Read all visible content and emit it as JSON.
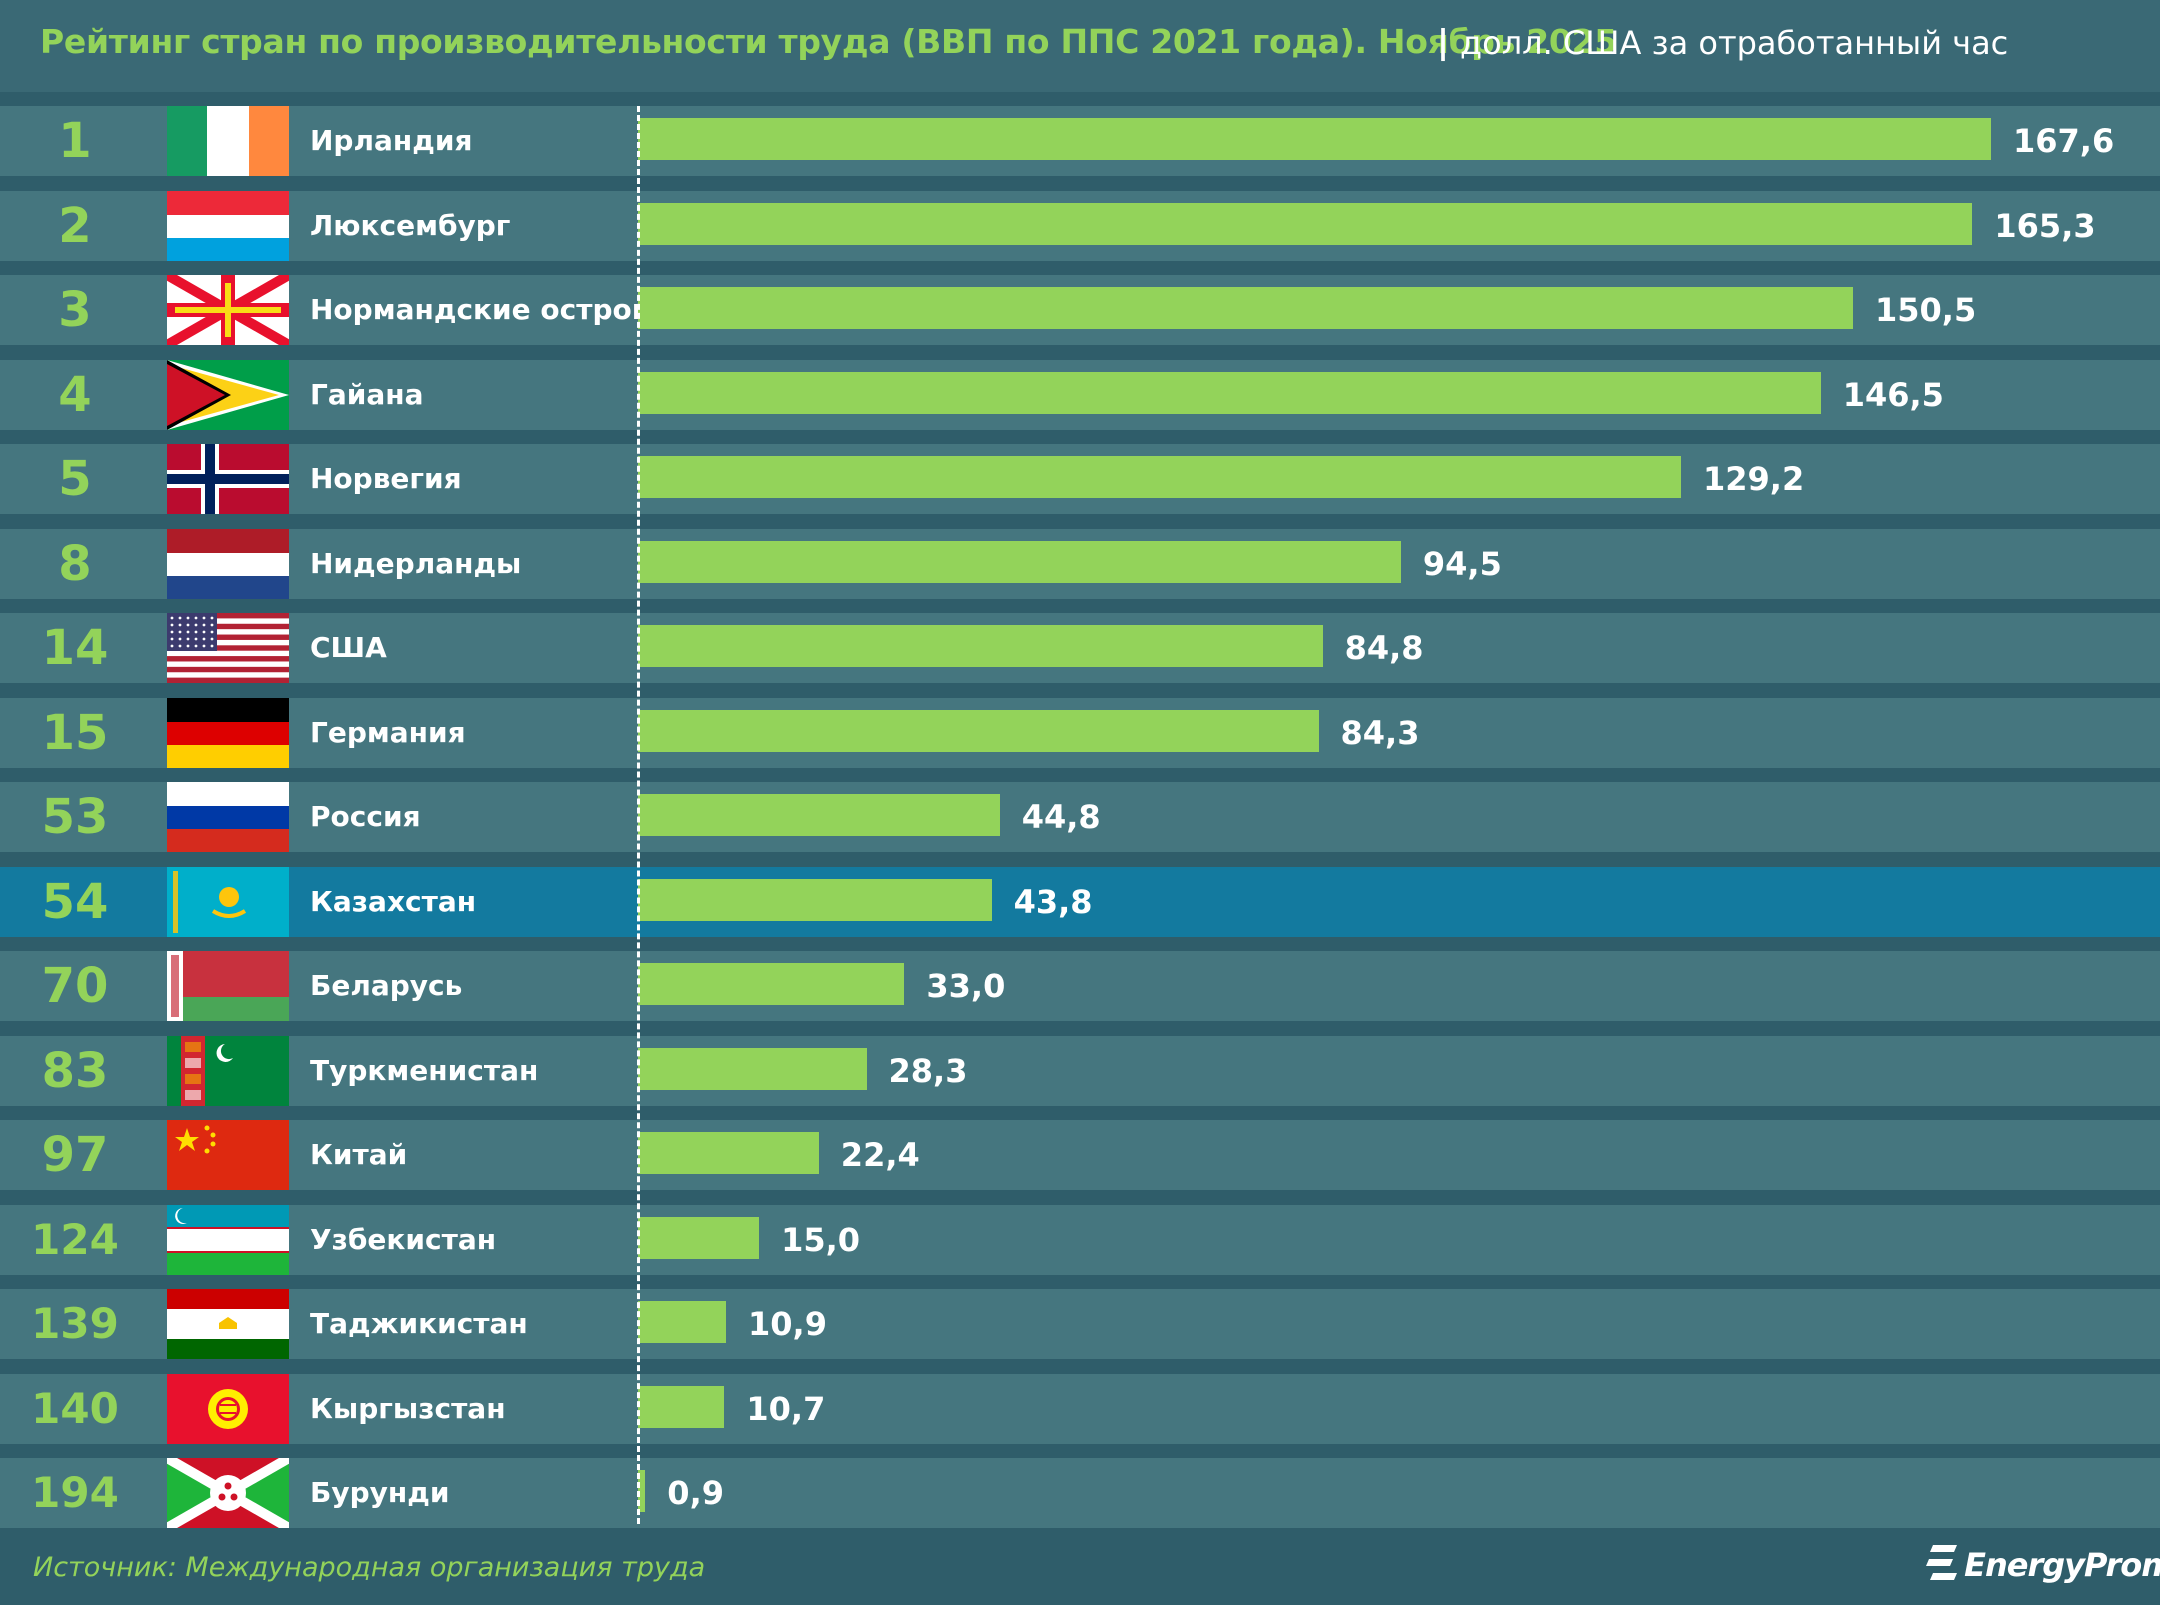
{
  "header": {
    "title": "Рейтинг стран по производительности труда (ВВП по ППС 2021 года). Ноябрь 2025",
    "separator": "|",
    "subtitle": "долл. США за отработанный час"
  },
  "footer": {
    "source": "Источник: Международная организация труда",
    "logo_text": "EnergyProm"
  },
  "colors": {
    "background": "#2f5d6a",
    "row": "#45767f",
    "highlight_row": "#137a9f",
    "bar": "#93d35a",
    "accent_text": "#93d35a"
  },
  "chart_data": {
    "type": "bar",
    "orientation": "horizontal",
    "title": "Рейтинг стран по производительности труда (ВВП по ППС 2021 года). Ноябрь 2025",
    "subtitle": "долл. США за отработанный час",
    "xlim": [
      0,
      167.6
    ],
    "grid": false,
    "highlight": "Казахстан",
    "rows": [
      {
        "rank": "1",
        "country": "Ирландия",
        "value": 167.6,
        "label": "167,6",
        "flag": "flag-ireland"
      },
      {
        "rank": "2",
        "country": "Люксембург",
        "value": 165.3,
        "label": "165,3",
        "flag": "flag-luxembourg"
      },
      {
        "rank": "3",
        "country": "Нормандские острова",
        "value": 150.5,
        "label": "150,5",
        "flag": "flag-jersey"
      },
      {
        "rank": "4",
        "country": "Гайана",
        "value": 146.5,
        "label": "146,5",
        "flag": "flag-guyana"
      },
      {
        "rank": "5",
        "country": "Норвегия",
        "value": 129.2,
        "label": "129,2",
        "flag": "flag-norway"
      },
      {
        "rank": "8",
        "country": "Нидерланды",
        "value": 94.5,
        "label": "94,5",
        "flag": "flag-netherlands"
      },
      {
        "rank": "14",
        "country": "США",
        "value": 84.8,
        "label": "84,8",
        "flag": "flag-usa"
      },
      {
        "rank": "15",
        "country": "Германия",
        "value": 84.3,
        "label": "84,3",
        "flag": "flag-germany"
      },
      {
        "rank": "53",
        "country": "Россия",
        "value": 44.8,
        "label": "44,8",
        "flag": "flag-russia"
      },
      {
        "rank": "54",
        "country": "Казахстан",
        "value": 43.8,
        "label": "43,8",
        "flag": "flag-kazakhstan"
      },
      {
        "rank": "70",
        "country": "Беларусь",
        "value": 33.0,
        "label": "33,0",
        "flag": "flag-belarus"
      },
      {
        "rank": "83",
        "country": "Туркменистан",
        "value": 28.3,
        "label": "28,3",
        "flag": "flag-turkmenistan"
      },
      {
        "rank": "97",
        "country": "Китай",
        "value": 22.4,
        "label": "22,4",
        "flag": "flag-china"
      },
      {
        "rank": "124",
        "country": "Узбекистан",
        "value": 15.0,
        "label": "15,0",
        "flag": "flag-uzbekistan"
      },
      {
        "rank": "139",
        "country": "Таджикистан",
        "value": 10.9,
        "label": "10,9",
        "flag": "flag-tajikistan"
      },
      {
        "rank": "140",
        "country": "Кыргызстан",
        "value": 10.7,
        "label": "10,7",
        "flag": "flag-kyrgyzstan"
      },
      {
        "rank": "194",
        "country": "Бурунди",
        "value": 0.9,
        "label": "0,9",
        "flag": "flag-burundi"
      }
    ]
  }
}
